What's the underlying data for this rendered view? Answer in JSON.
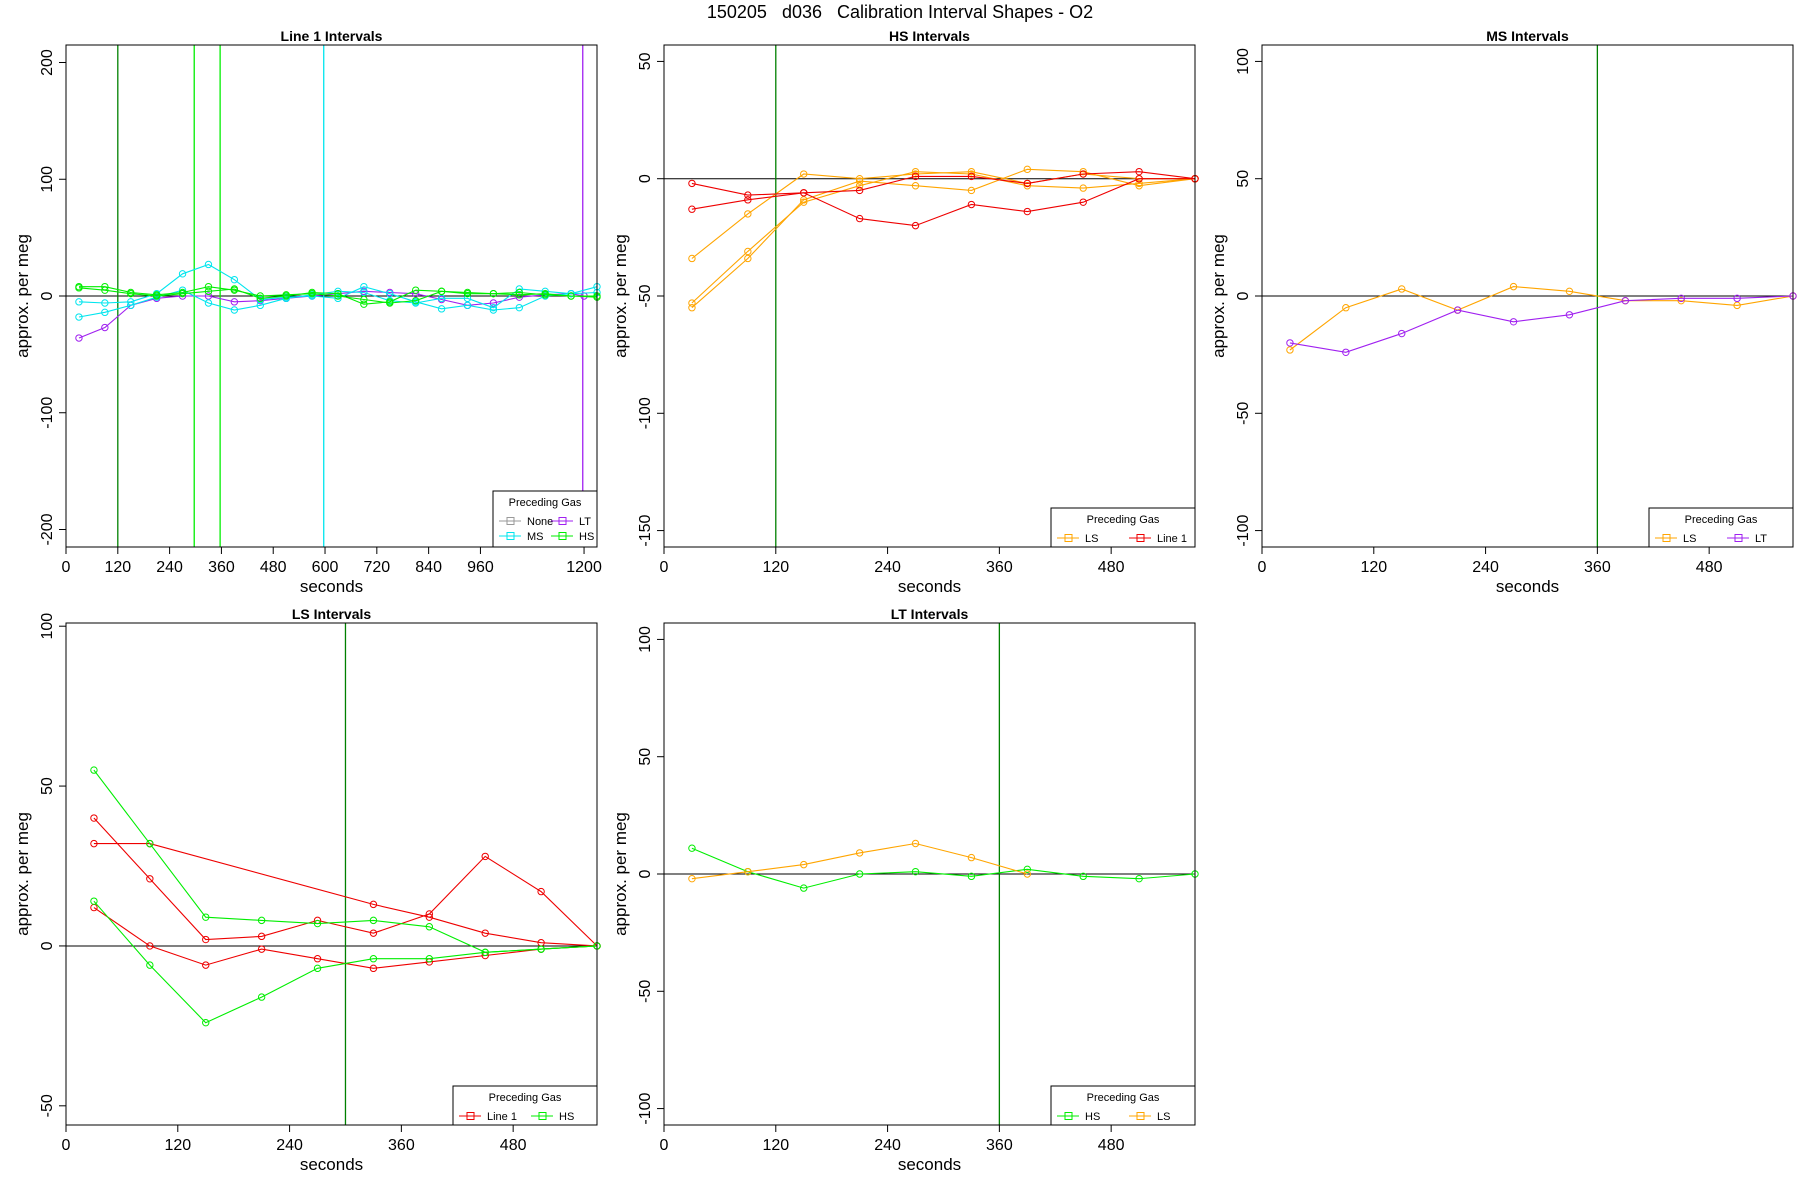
{
  "title": "150205   d036   Calibration Interval Shapes - O2",
  "colors": {
    "None": "#999999",
    "LT": "#a020f0",
    "MS": "#00e5ee",
    "HS": "#00ee00",
    "LS": "#ffa500",
    "Line 1": "#ee0000",
    "vline_green": "#008000",
    "axis": "#000000"
  },
  "chart_data": [
    {
      "type": "line",
      "title": "Line 1 Intervals",
      "xlabel": "seconds",
      "ylabel": "approx. per meg",
      "xlim": [
        0,
        1230
      ],
      "ylim": [
        -215,
        215
      ],
      "xticks": [
        0,
        120,
        240,
        360,
        480,
        600,
        720,
        840,
        960,
        1200
      ],
      "xtick_labels": [
        "0",
        "120",
        "240",
        "360",
        "480",
        "600",
        "720",
        "840",
        "960",
        "1200"
      ],
      "yticks": [
        -200,
        -100,
        0,
        100,
        200
      ],
      "ytick_labels": [
        "-200",
        "-100",
        "0",
        "100",
        "200"
      ],
      "hline": 0,
      "vlines": [
        {
          "x": 120,
          "color": "vline_green"
        },
        {
          "x": 297,
          "color": "HS"
        },
        {
          "x": 357,
          "color": "HS"
        },
        {
          "x": 597,
          "color": "MS"
        },
        {
          "x": 1197,
          "color": "LT"
        }
      ],
      "legend": {
        "title": "Preceding Gas",
        "position": "bottom-right",
        "columns": 2,
        "entries": [
          "None",
          "LT",
          "MS",
          "HS"
        ]
      },
      "series": [
        {
          "name": "LT",
          "color": "LT",
          "x": [
            30,
            90,
            150,
            210,
            270,
            330,
            390,
            450,
            510,
            570,
            630,
            690,
            750,
            810,
            870,
            930,
            990,
            1050,
            1110,
            1170,
            1200
          ],
          "y": [
            -36,
            -27,
            -8,
            -2,
            0,
            0,
            -5,
            -4,
            -2,
            0,
            2,
            4,
            3,
            2,
            -3,
            -8,
            -6,
            -1,
            1,
            2,
            0
          ]
        },
        {
          "name": "MS",
          "color": "MS",
          "x": [
            30,
            90,
            150,
            210,
            270,
            330,
            390,
            450,
            510,
            570,
            630,
            690,
            750,
            810,
            870,
            930,
            990,
            1050,
            1110,
            1170,
            1230
          ],
          "y": [
            -5,
            -6,
            -5,
            2,
            19,
            27,
            14,
            -3,
            -1,
            0,
            -2,
            8,
            2,
            -5,
            -11,
            -8,
            -12,
            -10,
            0,
            2,
            8
          ]
        },
        {
          "name": "MS",
          "color": "MS",
          "x": [
            30,
            90,
            150,
            210,
            270,
            330,
            390,
            450,
            510,
            570,
            630,
            690,
            750,
            810,
            870,
            930,
            990,
            1050,
            1110,
            1170,
            1230
          ],
          "y": [
            -18,
            -14,
            -8,
            -1,
            5,
            -6,
            -12,
            -8,
            -2,
            1,
            4,
            3,
            -4,
            -6,
            -2,
            -2,
            -10,
            6,
            4,
            2,
            3
          ]
        },
        {
          "name": "HS",
          "color": "HS",
          "x": [
            30,
            90,
            150,
            210,
            270,
            330,
            390,
            450,
            510,
            570,
            630,
            690,
            750,
            810,
            870,
            930,
            990,
            1050,
            1110,
            1170,
            1230
          ],
          "y": [
            8,
            8,
            3,
            1,
            3,
            8,
            5,
            0,
            1,
            2,
            0,
            -3,
            -6,
            -4,
            4,
            3,
            2,
            1,
            2,
            0,
            0
          ]
        },
        {
          "name": "HS",
          "color": "HS",
          "x": [
            30,
            90,
            150,
            210,
            270,
            330,
            390,
            450,
            510,
            570,
            630,
            690,
            750,
            810,
            870,
            930,
            990,
            1050,
            1110,
            1170,
            1230
          ],
          "y": [
            7,
            5,
            2,
            0,
            2,
            4,
            6,
            -2,
            0,
            3,
            2,
            -7,
            -5,
            5,
            4,
            2,
            2,
            3,
            1,
            0,
            -1
          ]
        }
      ]
    },
    {
      "type": "line",
      "title": "HS Intervals",
      "xlabel": "seconds",
      "ylabel": "approx. per meg",
      "xlim": [
        0,
        570
      ],
      "ylim": [
        -157,
        57
      ],
      "xticks": [
        0,
        120,
        240,
        360,
        480
      ],
      "xtick_labels": [
        "0",
        "120",
        "240",
        "360",
        "480"
      ],
      "yticks": [
        -150,
        -100,
        -50,
        0,
        50
      ],
      "ytick_labels": [
        "-150",
        "-100",
        "-50",
        "0",
        "50"
      ],
      "hline": 0,
      "vlines": [
        {
          "x": 120,
          "color": "vline_green"
        }
      ],
      "legend": {
        "title": "Preceding Gas",
        "position": "bottom-right",
        "columns": 2,
        "entries": [
          "LS",
          "Line 1"
        ]
      },
      "series": [
        {
          "name": "LS",
          "color": "LS",
          "x": [
            30,
            90,
            150,
            210,
            270,
            330,
            390,
            450,
            510,
            570
          ],
          "y": [
            -34,
            -15,
            2,
            0,
            2,
            3,
            -2,
            2,
            0,
            0
          ]
        },
        {
          "name": "LS",
          "color": "LS",
          "x": [
            30,
            90,
            150,
            210,
            270,
            330,
            390,
            450,
            510,
            570
          ],
          "y": [
            -53,
            -31,
            -10,
            -3,
            3,
            2,
            -3,
            -4,
            -2,
            0
          ]
        },
        {
          "name": "LS",
          "color": "LS",
          "x": [
            30,
            90,
            150,
            210,
            270,
            330,
            390,
            450,
            510,
            570
          ],
          "y": [
            -55,
            -34,
            -9,
            -1,
            -3,
            -5,
            4,
            3,
            -3,
            0
          ]
        },
        {
          "name": "Line 1",
          "color": "Line 1",
          "x": [
            30,
            90,
            150,
            210,
            270,
            330,
            390,
            450,
            510,
            570
          ],
          "y": [
            -2,
            -7,
            -6,
            -5,
            1,
            1,
            -2,
            2,
            3,
            0
          ]
        },
        {
          "name": "Line 1",
          "color": "Line 1",
          "x": [
            30,
            90,
            150,
            210,
            270,
            330,
            390,
            450,
            510,
            570
          ],
          "y": [
            -13,
            -9,
            -6,
            -17,
            -20,
            -11,
            -14,
            -10,
            0,
            0
          ]
        }
      ]
    },
    {
      "type": "line",
      "title": "MS Intervals",
      "xlabel": "seconds",
      "ylabel": "approx. per meg",
      "xlim": [
        0,
        570
      ],
      "ylim": [
        -107,
        107
      ],
      "xticks": [
        0,
        120,
        240,
        360,
        480
      ],
      "xtick_labels": [
        "0",
        "120",
        "240",
        "360",
        "480"
      ],
      "yticks": [
        -100,
        -50,
        0,
        50,
        100
      ],
      "ytick_labels": [
        "-100",
        "-50",
        "0",
        "50",
        "100"
      ],
      "hline": 0,
      "vlines": [
        {
          "x": 360,
          "color": "vline_green"
        }
      ],
      "legend": {
        "title": "Preceding Gas",
        "position": "bottom-right",
        "columns": 2,
        "entries": [
          "LS",
          "LT"
        ]
      },
      "series": [
        {
          "name": "LS",
          "color": "LS",
          "x": [
            30,
            90,
            150,
            210,
            270,
            330,
            390,
            450,
            510,
            570
          ],
          "y": [
            -23,
            -5,
            3,
            -6,
            4,
            2,
            -2,
            -2,
            -4,
            0
          ]
        },
        {
          "name": "LT",
          "color": "LT",
          "x": [
            30,
            90,
            150,
            210,
            270,
            330,
            390,
            450,
            510,
            570
          ],
          "y": [
            -20,
            -24,
            -16,
            -6,
            -11,
            -8,
            -2,
            -1,
            -1,
            0
          ]
        }
      ]
    },
    {
      "type": "line",
      "title": "LS Intervals",
      "xlabel": "seconds",
      "ylabel": "approx. per meg",
      "xlim": [
        0,
        570
      ],
      "ylim": [
        -56,
        101
      ],
      "xticks": [
        0,
        120,
        240,
        360,
        480
      ],
      "xtick_labels": [
        "0",
        "120",
        "240",
        "360",
        "480"
      ],
      "yticks": [
        -50,
        0,
        50,
        100
      ],
      "ytick_labels": [
        "-50",
        "0",
        "50",
        "100"
      ],
      "hline": 0,
      "vlines": [
        {
          "x": 300,
          "color": "vline_green"
        }
      ],
      "legend": {
        "title": "Preceding Gas",
        "position": "bottom-right",
        "columns": 2,
        "entries": [
          "Line 1",
          "HS"
        ]
      },
      "series": [
        {
          "name": "Line 1",
          "color": "Line 1",
          "x": [
            30,
            90,
            150,
            210,
            270,
            330,
            390,
            450,
            510,
            570
          ],
          "y": [
            40,
            21,
            2,
            3,
            8,
            4,
            10,
            28,
            17,
            0
          ]
        },
        {
          "name": "Line 1",
          "color": "Line 1",
          "x": [
            30,
            90,
            330,
            390,
            450,
            510,
            570
          ],
          "y": [
            32,
            32,
            13,
            9,
            4,
            1,
            0
          ]
        },
        {
          "name": "Line 1",
          "color": "Line 1",
          "x": [
            30,
            90,
            150,
            210,
            270,
            330,
            390,
            450,
            510,
            570
          ],
          "y": [
            12,
            0,
            -6,
            -1,
            -4,
            -7,
            -5,
            -3,
            -1,
            0
          ]
        },
        {
          "name": "HS",
          "color": "HS",
          "x": [
            30,
            90,
            150,
            210,
            270,
            330,
            390,
            450,
            510,
            570
          ],
          "y": [
            55,
            32,
            9,
            8,
            7,
            8,
            6,
            -2,
            -1,
            0
          ]
        },
        {
          "name": "HS",
          "color": "HS",
          "x": [
            30,
            90,
            150,
            210,
            270,
            330,
            390,
            450,
            510,
            570
          ],
          "y": [
            14,
            -6,
            -24,
            -16,
            -7,
            -4,
            -4,
            -2,
            -1,
            0
          ]
        }
      ]
    },
    {
      "type": "line",
      "title": "LT Intervals",
      "xlabel": "seconds",
      "ylabel": "approx. per meg",
      "xlim": [
        0,
        570
      ],
      "ylim": [
        -107,
        107
      ],
      "xticks": [
        0,
        120,
        240,
        360,
        480
      ],
      "xtick_labels": [
        "0",
        "120",
        "240",
        "360",
        "480"
      ],
      "yticks": [
        -100,
        -50,
        0,
        50,
        100
      ],
      "ytick_labels": [
        "-100",
        "-50",
        "0",
        "50",
        "100"
      ],
      "hline": 0,
      "vlines": [
        {
          "x": 360,
          "color": "vline_green"
        }
      ],
      "legend": {
        "title": "Preceding Gas",
        "position": "bottom-right",
        "columns": 2,
        "entries": [
          "HS",
          "LS"
        ]
      },
      "series": [
        {
          "name": "HS",
          "color": "HS",
          "x": [
            30,
            90,
            150,
            210,
            270,
            330,
            390,
            450,
            510,
            570
          ],
          "y": [
            11,
            1,
            -6,
            0,
            1,
            -1,
            2,
            -1,
            -2,
            0
          ]
        },
        {
          "name": "LS",
          "color": "LS",
          "x": [
            30,
            90,
            150,
            210,
            270,
            330,
            390
          ],
          "y": [
            -2,
            1,
            4,
            9,
            13,
            7,
            0
          ]
        }
      ]
    }
  ]
}
